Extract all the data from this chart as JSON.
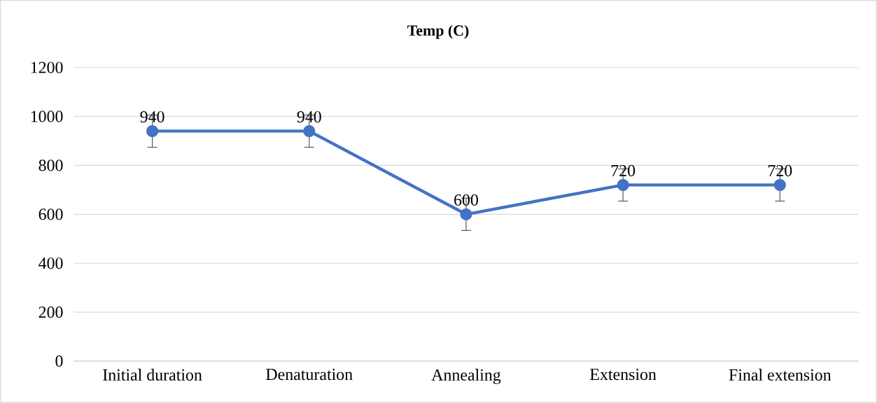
{
  "chart_data": {
    "type": "line",
    "title": "Temp (C)",
    "categories": [
      "Initial duration",
      "Denaturation",
      "Annealing",
      "Extension",
      "Final extension"
    ],
    "series": [
      {
        "color": "#4472c4",
        "values": [
          940,
          940,
          600,
          720,
          720
        ],
        "errors": [
          66,
          66,
          66,
          66,
          66
        ]
      }
    ],
    "ylim": [
      0,
      1200
    ],
    "yticks": [
      0,
      200,
      400,
      600,
      800,
      1000,
      1200
    ],
    "grid": "y",
    "marker": "circle",
    "line_style": "solid",
    "data_labels": true
  }
}
